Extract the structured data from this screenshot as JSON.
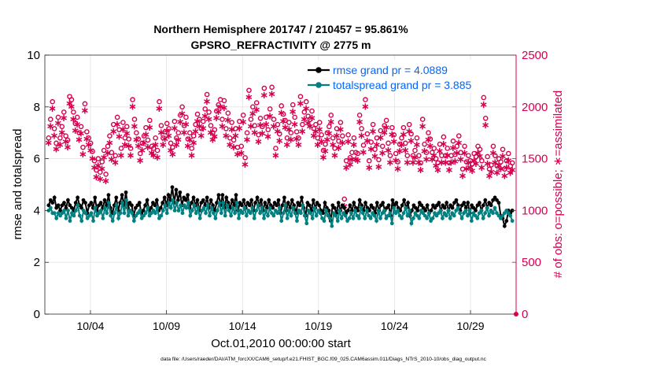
{
  "chart_data": {
    "type": "line",
    "title_line1": "Northern Hemisphere 201747 / 210457 = 95.861%",
    "title_line2": "GPSRO_REFRACTIVITY @ 2775 m",
    "xlabel": "Oct.01,2010 00:00:00 start",
    "ylabel_left": "rmse and totalspread",
    "ylabel_right": "# of obs: o=possible; ∗=assimilated",
    "footer": "data file: /Users/raeder/DAI/ATM_forcXX/CAM6_setup/f.e21.FHIST_BGC.f09_025.CAM6assim.011/Diags_NTrS_2010-10/obs_diag_output.nc",
    "xlim": [
      1,
      32
    ],
    "ylim_left": [
      0,
      10
    ],
    "ylim_right": [
      0,
      2500
    ],
    "x_ticks": [
      4,
      9,
      14,
      19,
      24,
      29
    ],
    "x_tick_labels": [
      "10/04",
      "10/09",
      "10/14",
      "10/19",
      "10/24",
      "10/29"
    ],
    "y_ticks_left": [
      0,
      2,
      4,
      6,
      8,
      10
    ],
    "y_tick_labels_left": [
      "0",
      "2",
      "4",
      "6",
      "8",
      "10"
    ],
    "y_ticks_right": [
      0,
      500,
      1000,
      1500,
      2000,
      2500
    ],
    "y_tick_labels_right": [
      "0",
      "500",
      "1000",
      "1500",
      "2000",
      "2500"
    ],
    "legend": [
      {
        "label": "rmse grand pr = 4.0889",
        "color": "#000000"
      },
      {
        "label": "totalspread grand pr = 3.885",
        "color": "#008080"
      }
    ],
    "colors": {
      "rmse": "#000000",
      "spread": "#008080",
      "obs": "#d6004f",
      "legend_text": "#0066ff",
      "right_axis": "#d6004f",
      "grid": "#e3e3e3"
    },
    "series_rmse": [
      4.2,
      4.4,
      4.3,
      4.5,
      4.1,
      4.2,
      4.0,
      4.2,
      4.3,
      4.1,
      4.4,
      4.2,
      4.1,
      4.0,
      4.3,
      4.5,
      4.2,
      4.1,
      4.4,
      4.3,
      3.9,
      4.2,
      4.3,
      4.1,
      4.5,
      4.0,
      4.2,
      4.3,
      4.1,
      4.4,
      4.2,
      4.6,
      4.1,
      3.9,
      4.2,
      4.5,
      4.0,
      4.3,
      4.6,
      4.2,
      4.7,
      4.1,
      4.3,
      4.2,
      3.8,
      4.1,
      4.2,
      4.3,
      3.9,
      4.0,
      4.2,
      4.4,
      4.0,
      4.1,
      4.3,
      4.2,
      4.4,
      4.0,
      4.1,
      4.3,
      4.5,
      4.2,
      4.6,
      4.4,
      4.9,
      4.3,
      4.8,
      4.4,
      4.7,
      4.2,
      4.5,
      4.4,
      4.6,
      4.1,
      4.3,
      4.5,
      4.2,
      4.4,
      4.0,
      4.3,
      4.4,
      4.2,
      4.5,
      4.1,
      4.4,
      4.2,
      4.0,
      4.3,
      4.6,
      4.2,
      4.6,
      4.1,
      4.5,
      4.3,
      4.1,
      4.4,
      4.2,
      4.6,
      4.0,
      4.3,
      4.2,
      4.4,
      4.1,
      4.3,
      4.2,
      4.4,
      4.0,
      4.3,
      4.5,
      4.2,
      4.4,
      4.0,
      4.3,
      4.1,
      4.4,
      4.2,
      4.1,
      4.3,
      4.2,
      4.4,
      3.9,
      4.2,
      4.5,
      4.0,
      4.3,
      4.1,
      4.4,
      4.2,
      3.9,
      4.3,
      4.2,
      4.5,
      4.1,
      3.8,
      4.3,
      4.2,
      4.0,
      4.4,
      4.1,
      4.3,
      4.2,
      4.0,
      3.9,
      4.3,
      4.1,
      4.0,
      3.6,
      4.2,
      4.1,
      3.9,
      4.3,
      4.0,
      4.2,
      4.1,
      3.9,
      4.0,
      4.2,
      4.0,
      4.3,
      4.1,
      4.0,
      4.4,
      4.2,
      4.0,
      4.3,
      4.1,
      4.0,
      4.2,
      4.1,
      3.9,
      4.3,
      4.0,
      4.2,
      4.3,
      4.0,
      4.1,
      4.2,
      3.8,
      4.4,
      4.2,
      4.3,
      4.1,
      4.0,
      4.2,
      4.4,
      4.1,
      4.3,
      3.8,
      4.0,
      4.2,
      4.1,
      4.0,
      4.3,
      4.2,
      4.1,
      4.0,
      4.2,
      3.9,
      4.0,
      4.2,
      4.1,
      4.2,
      4.3,
      4.0,
      4.2,
      4.1,
      4.3,
      4.0,
      4.2,
      4.1,
      4.3,
      4.4,
      4.2,
      4.0,
      4.2,
      4.3,
      4.1,
      4.3,
      3.9,
      4.2,
      4.1,
      4.0,
      4.2,
      4.3,
      4.0,
      4.2,
      4.4,
      4.1,
      4.3,
      4.2,
      4.4,
      4.5,
      4.4,
      4.3,
      3.8,
      3.7,
      3.4,
      3.6,
      4.0,
      3.9,
      4.0
    ],
    "series_spread": [
      4.0,
      4.1,
      3.9,
      3.9,
      3.7,
      3.9,
      3.8,
      3.9,
      4.0,
      3.7,
      4.0,
      3.6,
      3.9,
      3.8,
      4.0,
      4.2,
      3.8,
      3.6,
      4.0,
      3.9,
      3.7,
      3.8,
      3.9,
      3.6,
      4.1,
      3.8,
      3.9,
      4.0,
      3.7,
      4.1,
      3.9,
      4.3,
      3.8,
      3.6,
      3.9,
      4.2,
      3.7,
      3.9,
      4.3,
      3.9,
      4.4,
      3.8,
      4.0,
      3.9,
      3.6,
      3.8,
      3.9,
      4.0,
      3.7,
      3.8,
      3.9,
      4.1,
      3.8,
      3.9,
      4.0,
      3.9,
      4.1,
      3.7,
      3.8,
      4.0,
      4.2,
      3.9,
      4.3,
      4.1,
      4.4,
      4.0,
      4.3,
      4.0,
      4.2,
      3.9,
      4.2,
      4.1,
      4.3,
      3.8,
      4.0,
      4.2,
      3.9,
      4.1,
      3.7,
      4.0,
      4.1,
      3.9,
      4.2,
      3.8,
      4.1,
      3.9,
      3.7,
      4.0,
      4.3,
      3.9,
      4.3,
      3.8,
      4.2,
      4.0,
      3.8,
      4.1,
      3.9,
      4.3,
      3.7,
      4.0,
      3.9,
      4.1,
      3.8,
      4.0,
      3.9,
      4.1,
      3.7,
      4.0,
      4.2,
      3.9,
      4.1,
      3.7,
      4.0,
      3.8,
      4.1,
      3.9,
      3.8,
      4.0,
      3.9,
      4.1,
      3.6,
      3.9,
      4.2,
      3.7,
      4.0,
      3.8,
      4.1,
      3.9,
      3.6,
      4.0,
      3.9,
      4.2,
      3.8,
      3.5,
      4.0,
      3.9,
      3.7,
      4.1,
      3.8,
      4.0,
      3.9,
      3.7,
      3.6,
      4.0,
      3.8,
      3.7,
      3.4,
      3.9,
      3.8,
      3.6,
      4.0,
      3.7,
      3.9,
      3.8,
      3.6,
      3.7,
      3.9,
      3.7,
      4.0,
      3.8,
      3.7,
      4.1,
      3.9,
      3.7,
      4.0,
      3.8,
      3.7,
      3.9,
      3.8,
      3.6,
      4.0,
      3.7,
      3.9,
      4.0,
      3.7,
      3.8,
      3.9,
      3.5,
      4.1,
      3.9,
      4.0,
      3.8,
      3.7,
      3.9,
      4.1,
      3.8,
      4.0,
      3.5,
      3.7,
      3.9,
      3.8,
      3.7,
      4.0,
      3.9,
      3.8,
      3.7,
      3.9,
      3.6,
      3.7,
      3.9,
      3.8,
      3.9,
      4.0,
      3.7,
      3.9,
      3.8,
      4.0,
      3.7,
      3.9,
      3.8,
      4.0,
      4.1,
      3.9,
      3.7,
      3.9,
      4.0,
      3.8,
      4.0,
      3.6,
      3.9,
      3.8,
      3.7,
      3.9,
      4.0,
      3.7,
      3.9,
      4.1,
      3.8,
      4.0,
      3.9,
      4.1,
      3.9,
      3.8,
      3.7,
      3.8,
      3.9,
      4.0,
      3.9,
      3.8,
      3.6
    ],
    "obs_possible": [
      1700,
      1880,
      2050,
      1790,
      1650,
      1900,
      1700,
      1810,
      1950,
      1720,
      1680,
      2100,
      2070,
      1950,
      1840,
      1900,
      1750,
      1810,
      1610,
      2030,
      1760,
      1700,
      1650,
      1570,
      1480,
      1390,
      1500,
      1370,
      1470,
      1580,
      1350,
      1620,
      1720,
      1560,
      1830,
      1530,
      1900,
      1780,
      1600,
      1850,
      1700,
      1810,
      1690,
      1600,
      2070,
      1880,
      1750,
      1690,
      1550,
      1650,
      1720,
      1800,
      1680,
      1870,
      1620,
      1600,
      1700,
      1580,
      2050,
      1820,
      1700,
      1760,
      1840,
      1790,
      1650,
      1610,
      1860,
      1700,
      1750,
      1920,
      2000,
      1820,
      1900,
      1690,
      1750,
      1600,
      1720,
      1830,
      1930,
      1880,
      1790,
      1860,
      1980,
      2120,
      1950,
      1820,
      1750,
      1780,
      1960,
      2020,
      2070,
      1880,
      2060,
      1790,
      1940,
      1700,
      1850,
      1680,
      1790,
      1610,
      1860,
      1620,
      1920,
      1510,
      1750,
      2160,
      1880,
      2000,
      1820,
      2040,
      1730,
      1890,
      1810,
      2180,
      1900,
      1780,
      1980,
      2190,
      1880,
      1600,
      1830,
      1740,
      2010,
      1930,
      1870,
      1700,
      1850,
      1750,
      2020,
      1900,
      1760,
      1700,
      2100,
      1830,
      1950,
      2050,
      1910,
      1880,
      1960,
      1790,
      1830,
      1700,
      1850,
      1730,
      1580,
      1640,
      1750,
      1810,
      1920,
      1700,
      1600,
      1790,
      1670,
      1850,
      1720,
      1110,
      1480,
      1730,
      1510,
      1560,
      1700,
      1560,
      1550,
      1920,
      1790,
      1630,
      2070,
      1740,
      1480,
      1660,
      1830,
      1590,
      1700,
      1490,
      1770,
      1620,
      1820,
      1870,
      1650,
      1530,
      1800,
      1730,
      1550,
      1470,
      1640,
      1700,
      1800,
      1650,
      1530,
      1830,
      1740,
      1530,
      1580,
      1700,
      1530,
      1460,
      1880,
      1640,
      1560,
      1750,
      1690,
      1560,
      1600,
      1500,
      1460,
      1640,
      1530,
      1710,
      1530,
      1600,
      1460,
      1530,
      1670,
      1540,
      1620,
      1720,
      1560,
      1400,
      1620,
      1470,
      1530,
      1480,
      1450,
      1550,
      1520,
      1620,
      1590,
      1480,
      2090,
      1890,
      1520,
      1400,
      1440,
      1620,
      1530,
      1430,
      1500,
      1470,
      1590,
      1400,
      1480,
      1550,
      1430,
      1460
    ],
    "obs_assimilated": [
      1660,
      1820,
      1990,
      1730,
      1600,
      1850,
      1640,
      1760,
      1900,
      1670,
      1620,
      2040,
      2010,
      1890,
      1780,
      1840,
      1690,
      1750,
      1550,
      1970,
      1700,
      1640,
      1590,
      1510,
      1420,
      1330,
      1440,
      1310,
      1410,
      1520,
      1290,
      1560,
      1660,
      1500,
      1770,
      1470,
      1840,
      1720,
      1540,
      1790,
      1640,
      1750,
      1630,
      1540,
      2010,
      1820,
      1690,
      1630,
      1490,
      1590,
      1660,
      1740,
      1620,
      1810,
      1560,
      1540,
      1640,
      1520,
      1990,
      1760,
      1640,
      1700,
      1780,
      1730,
      1590,
      1550,
      1800,
      1640,
      1690,
      1860,
      1940,
      1760,
      1840,
      1630,
      1690,
      1540,
      1660,
      1770,
      1870,
      1820,
      1730,
      1800,
      1920,
      2060,
      1890,
      1760,
      1690,
      1720,
      1900,
      1960,
      2010,
      1820,
      2000,
      1730,
      1880,
      1640,
      1790,
      1620,
      1730,
      1550,
      1800,
      1560,
      1860,
      1450,
      1690,
      2100,
      1820,
      1940,
      1760,
      1980,
      1670,
      1830,
      1750,
      2120,
      1840,
      1720,
      1920,
      2130,
      1820,
      1540,
      1770,
      1680,
      1950,
      1870,
      1810,
      1640,
      1790,
      1690,
      1960,
      1840,
      1700,
      1640,
      2040,
      1770,
      1890,
      1990,
      1850,
      1820,
      1900,
      1730,
      1770,
      1640,
      1790,
      1670,
      1520,
      1580,
      1690,
      1750,
      1860,
      1640,
      1540,
      1730,
      1610,
      1790,
      1660,
      1050,
      1420,
      1670,
      1450,
      1500,
      1640,
      1500,
      1490,
      1860,
      1730,
      1570,
      2010,
      1680,
      1420,
      1600,
      1770,
      1530,
      1640,
      1430,
      1710,
      1560,
      1760,
      1810,
      1590,
      1470,
      1740,
      1670,
      1490,
      1410,
      1580,
      1640,
      1740,
      1590,
      1470,
      1770,
      1680,
      1470,
      1520,
      1640,
      1470,
      1400,
      1820,
      1580,
      1500,
      1690,
      1630,
      1500,
      1540,
      1440,
      1400,
      1580,
      1470,
      1650,
      1470,
      1540,
      1400,
      1470,
      1610,
      1480,
      1560,
      1660,
      1500,
      1340,
      1560,
      1410,
      1470,
      1420,
      1390,
      1490,
      1460,
      1560,
      1530,
      1420,
      2030,
      1830,
      1460,
      1340,
      1380,
      1560,
      1470,
      1370,
      1440,
      1410,
      1530,
      1340,
      1420,
      1490,
      1370,
      1400
    ]
  }
}
